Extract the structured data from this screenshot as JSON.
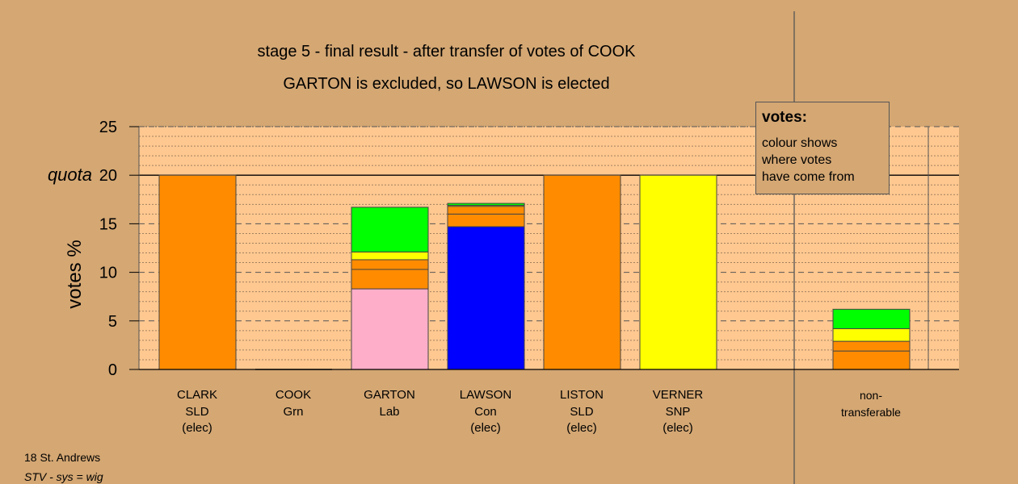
{
  "chart_data": {
    "type": "bar",
    "stacked": true,
    "title": "stage 5 - final result - after transfer of votes of COOK",
    "subtitle": "GARTON is excluded, so LAWSON is elected",
    "ylabel": "votes %",
    "ylim": [
      0,
      25
    ],
    "yticks": [
      "0",
      "5",
      "10",
      "15",
      "20",
      "25"
    ],
    "quota_label": "quota",
    "quota": 20,
    "candidates": [
      {
        "name": "CLARK",
        "party": "SLD",
        "status": "(elec)",
        "segments": [
          {
            "color": "#ff8c00",
            "value": 20
          }
        ]
      },
      {
        "name": "COOK",
        "party": "Grn",
        "status": "",
        "segments": [
          {
            "color": "#00ff00",
            "value": 0
          }
        ]
      },
      {
        "name": "GARTON",
        "party": "Lab",
        "status": "",
        "segments": [
          {
            "color": "#ffaec9",
            "value": 8.3
          },
          {
            "color": "#ff8c00",
            "value": 2.0
          },
          {
            "color": "#ff8c00",
            "value": 1.0
          },
          {
            "color": "#ffff00",
            "value": 0.8
          },
          {
            "color": "#00ff00",
            "value": 4.6
          }
        ]
      },
      {
        "name": "LAWSON",
        "party": "Con",
        "status": "(elec)",
        "segments": [
          {
            "color": "#0000ff",
            "value": 14.7
          },
          {
            "color": "#ff8c00",
            "value": 1.3
          },
          {
            "color": "#ff8c00",
            "value": 0.8
          },
          {
            "color": "#ffff00",
            "value": 0.1
          },
          {
            "color": "#00ff00",
            "value": 0.2
          }
        ]
      },
      {
        "name": "LISTON",
        "party": "SLD",
        "status": "(elec)",
        "segments": [
          {
            "color": "#ff8c00",
            "value": 20
          }
        ]
      },
      {
        "name": "VERNER",
        "party": "SNP",
        "status": "(elec)",
        "segments": [
          {
            "color": "#ffff00",
            "value": 20
          }
        ]
      }
    ],
    "nontransferable": {
      "label_line1": "non-",
      "label_line2": "transferable",
      "segments": [
        {
          "color": "#ff8c00",
          "value": 1.9
        },
        {
          "color": "#ff8c00",
          "value": 1.0
        },
        {
          "color": "#ffff00",
          "value": 1.3
        },
        {
          "color": "#00ff00",
          "value": 2.0
        }
      ]
    },
    "legend": {
      "heading": "votes:",
      "lines": [
        "colour shows",
        "where votes",
        "have come from"
      ]
    }
  },
  "footer": {
    "constituency": "18 St. Andrews",
    "system": "STV - sys = wig"
  }
}
